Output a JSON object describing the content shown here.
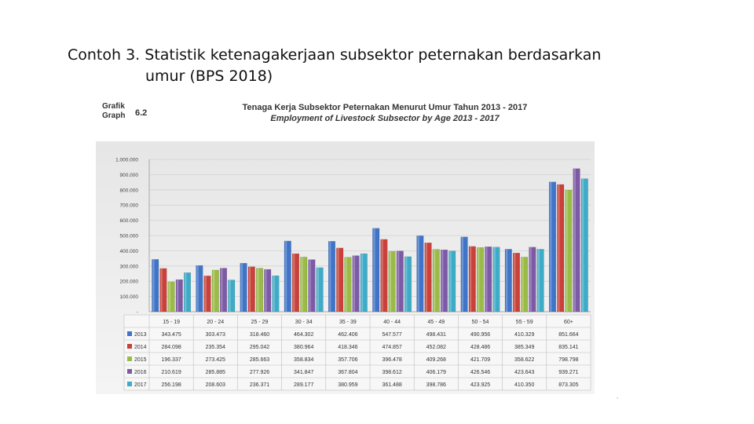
{
  "slide": {
    "title_line1": "Contoh 3. Statistik ketenagakerjaan subsektor peternakan berdasarkan",
    "title_line2": "umur (BPS 2018)"
  },
  "figure": {
    "grafik_label": "Grafik",
    "graph_label": "Graph",
    "number": "6.2",
    "title_id": "Tenaga Kerja Subsektor Peternakan Menurut Umur Tahun 2013 - 2017",
    "title_en": "Employment of Livestock Subsector by Age 2013 - 2017"
  },
  "footnote": ",",
  "chart_data": {
    "type": "bar",
    "title": "Tenaga Kerja Subsektor Peternakan Menurut Umur Tahun 2013 - 2017",
    "subtitle": "Employment of Livestock Subsector by Age 2013 - 2017",
    "categories": [
      "15 - 19",
      "20 - 24",
      "25 - 29",
      "30 - 34",
      "35 - 39",
      "40 - 44",
      "45 - 49",
      "50 - 54",
      "55 - 59",
      "60+"
    ],
    "ylim": [
      0,
      1000000
    ],
    "yticks": [
      "-",
      "100.000",
      "200.000",
      "300.000",
      "400.000",
      "500.000",
      "600.000",
      "700.000",
      "800.000",
      "900.000",
      "1.000.000"
    ],
    "legend_placement": "data-table-left",
    "grid": true,
    "series": [
      {
        "name": "2013",
        "color": "#3f74c8",
        "values": [
          343475,
          303473,
          318460,
          464302,
          462406,
          547577,
          498431,
          490956,
          410329,
          851664
        ],
        "labels": [
          "343.475",
          "303.473",
          "318.460",
          "464.302",
          "462.406",
          "547.577",
          "498.431",
          "490.956",
          "410.329",
          "851.664"
        ]
      },
      {
        "name": "2014",
        "color": "#c9413a",
        "values": [
          284098,
          235354,
          295042,
          380964,
          418346,
          474857,
          452082,
          428486,
          385349,
          835141
        ],
        "labels": [
          "284.098",
          "235.354",
          "295.042",
          "380.964",
          "418.346",
          "474.857",
          "452.082",
          "428.486",
          "385.349",
          "835.141"
        ]
      },
      {
        "name": "2015",
        "color": "#9bbb48",
        "values": [
          196337,
          273425,
          285663,
          358834,
          357706,
          396478,
          409268,
          421709,
          358622,
          798798
        ],
        "labels": [
          "196.337",
          "273.425",
          "285.663",
          "358.834",
          "357.706",
          "396.478",
          "409.268",
          "421.709",
          "358.622",
          "798.798"
        ]
      },
      {
        "name": "2016",
        "color": "#7d5aa6",
        "values": [
          210619,
          285885,
          277926,
          341847,
          367804,
          398612,
          406179,
          426546,
          423643,
          939271
        ],
        "labels": [
          "210.619",
          "285.885",
          "277.926",
          "341.847",
          "367.804",
          "398.612",
          "406.179",
          "426.546",
          "423.643",
          "939.271"
        ]
      },
      {
        "name": "2017",
        "color": "#3eabc8",
        "values": [
          256198,
          208603,
          236371,
          289177,
          380959,
          361488,
          398786,
          423925,
          410350,
          873305
        ],
        "labels": [
          "256.198",
          "208.603",
          "236.371",
          "289.177",
          "380.959",
          "361.488",
          "398.786",
          "423.925",
          "410.350",
          "873.305"
        ]
      }
    ]
  }
}
